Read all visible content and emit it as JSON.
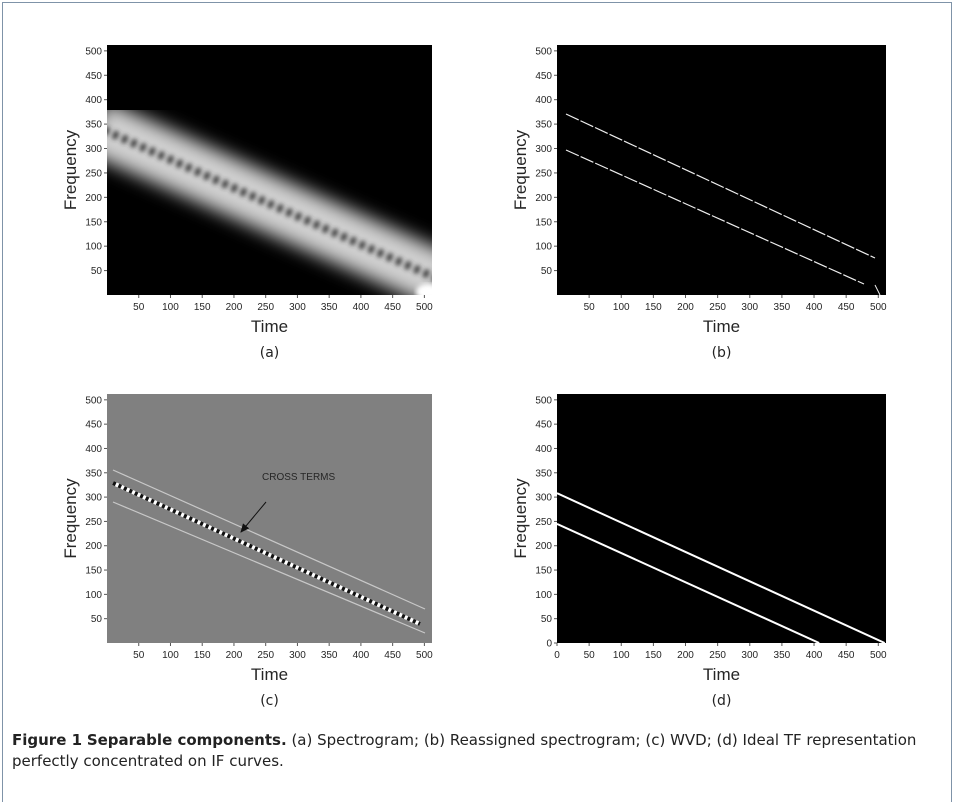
{
  "chart_data": [
    {
      "type": "image",
      "label": "(a)",
      "xlabel": "Time",
      "ylabel": "Frequency",
      "background": "#000000",
      "xlim": [
        0,
        512
      ],
      "ylim": [
        0,
        512
      ],
      "xticks": [
        50,
        100,
        150,
        200,
        250,
        300,
        350,
        400,
        450,
        500
      ],
      "yticks": [
        50,
        100,
        150,
        200,
        250,
        300,
        350,
        400,
        450,
        500
      ]
    },
    {
      "type": "image",
      "label": "(b)",
      "xlabel": "Time",
      "ylabel": "Frequency",
      "background": "#000000",
      "xlim": [
        0,
        512
      ],
      "ylim": [
        0,
        512
      ],
      "xticks": [
        50,
        100,
        150,
        200,
        250,
        300,
        350,
        400,
        450,
        500
      ],
      "yticks": [
        50,
        100,
        150,
        200,
        250,
        300,
        350,
        400,
        450,
        500
      ]
    },
    {
      "type": "image",
      "label": "(c)",
      "xlabel": "Time",
      "ylabel": "Frequency",
      "background": "#808080",
      "annotation": "CROSS TERMS",
      "xlim": [
        0,
        512
      ],
      "ylim": [
        0,
        512
      ],
      "xticks": [
        50,
        100,
        150,
        200,
        250,
        300,
        350,
        400,
        450,
        500
      ],
      "yticks": [
        50,
        100,
        150,
        200,
        250,
        300,
        350,
        400,
        450,
        500
      ]
    },
    {
      "type": "line",
      "label": "(d)",
      "xlabel": "Time",
      "ylabel": "Frequency",
      "background": "#000000",
      "xlim": [
        0,
        512
      ],
      "ylim": [
        0,
        512
      ],
      "xticks": [
        0,
        50,
        100,
        150,
        200,
        250,
        300,
        350,
        400,
        450,
        500
      ],
      "yticks": [
        0,
        50,
        100,
        150,
        200,
        250,
        300,
        350,
        400,
        450,
        500
      ],
      "series": [
        {
          "color": "#ffffff",
          "x": [
            0,
            510
          ],
          "values": [
            308,
            0
          ]
        },
        {
          "color": "#ffffff",
          "x": [
            0,
            408
          ],
          "values": [
            245,
            0
          ]
        }
      ]
    }
  ],
  "caption": {
    "label": "Figure 1",
    "title": "Separable components.",
    "text": "(a) Spectrogram; (b) Reassigned spectrogram; (c) WVD; (d) Ideal TF representation perfectly concentrated on IF curves."
  }
}
